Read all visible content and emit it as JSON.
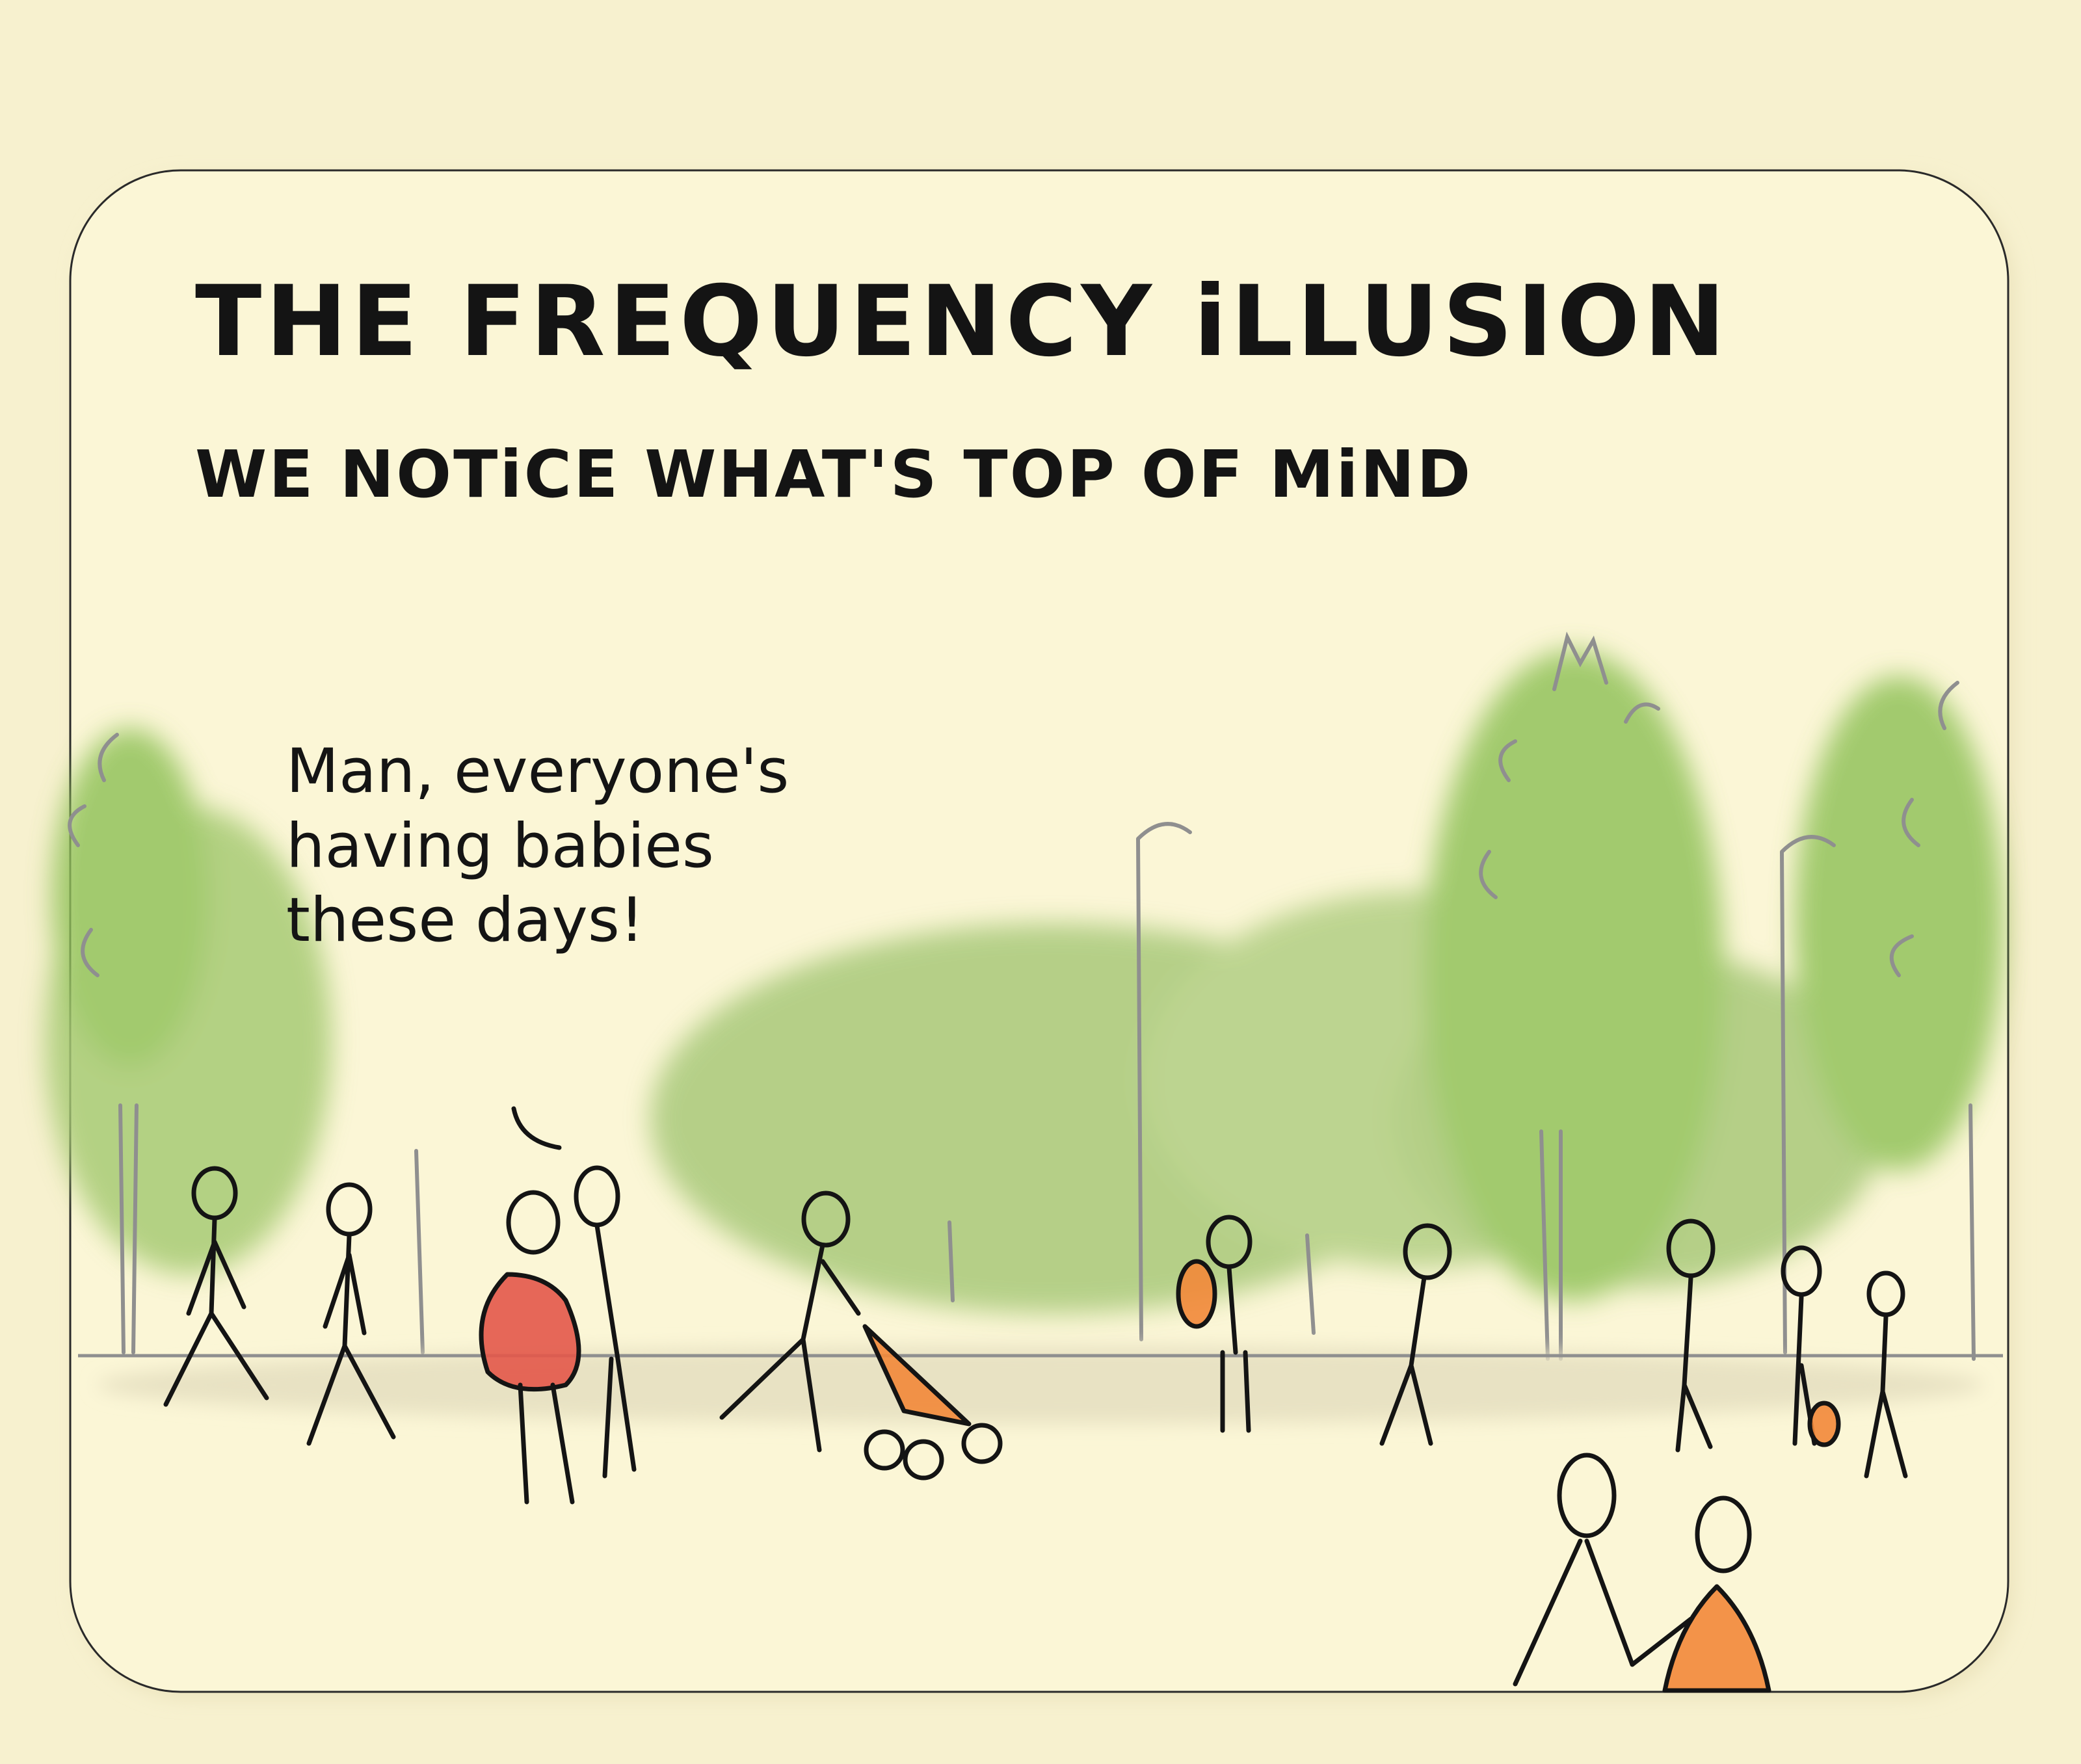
{
  "title": "THE FREQUENCY iLLUSION",
  "subtitle": "WE NOTiCE WHAT'S TOP OF MiND",
  "speech_bubble": {
    "lines": [
      "Man, everyone's",
      "having babies",
      "these days!"
    ]
  },
  "colors": {
    "background": "#f7f1cf",
    "card": "#fbf6d6",
    "ink": "#141414",
    "tree_green": "#9ccc65",
    "trees_gray": "#8f8f8f",
    "pregnant_red": "#e3584a",
    "baby_orange": "#f2883a"
  },
  "icons": [
    "tree-icon",
    "lamp-post-icon",
    "person-icon",
    "stroller-icon"
  ]
}
